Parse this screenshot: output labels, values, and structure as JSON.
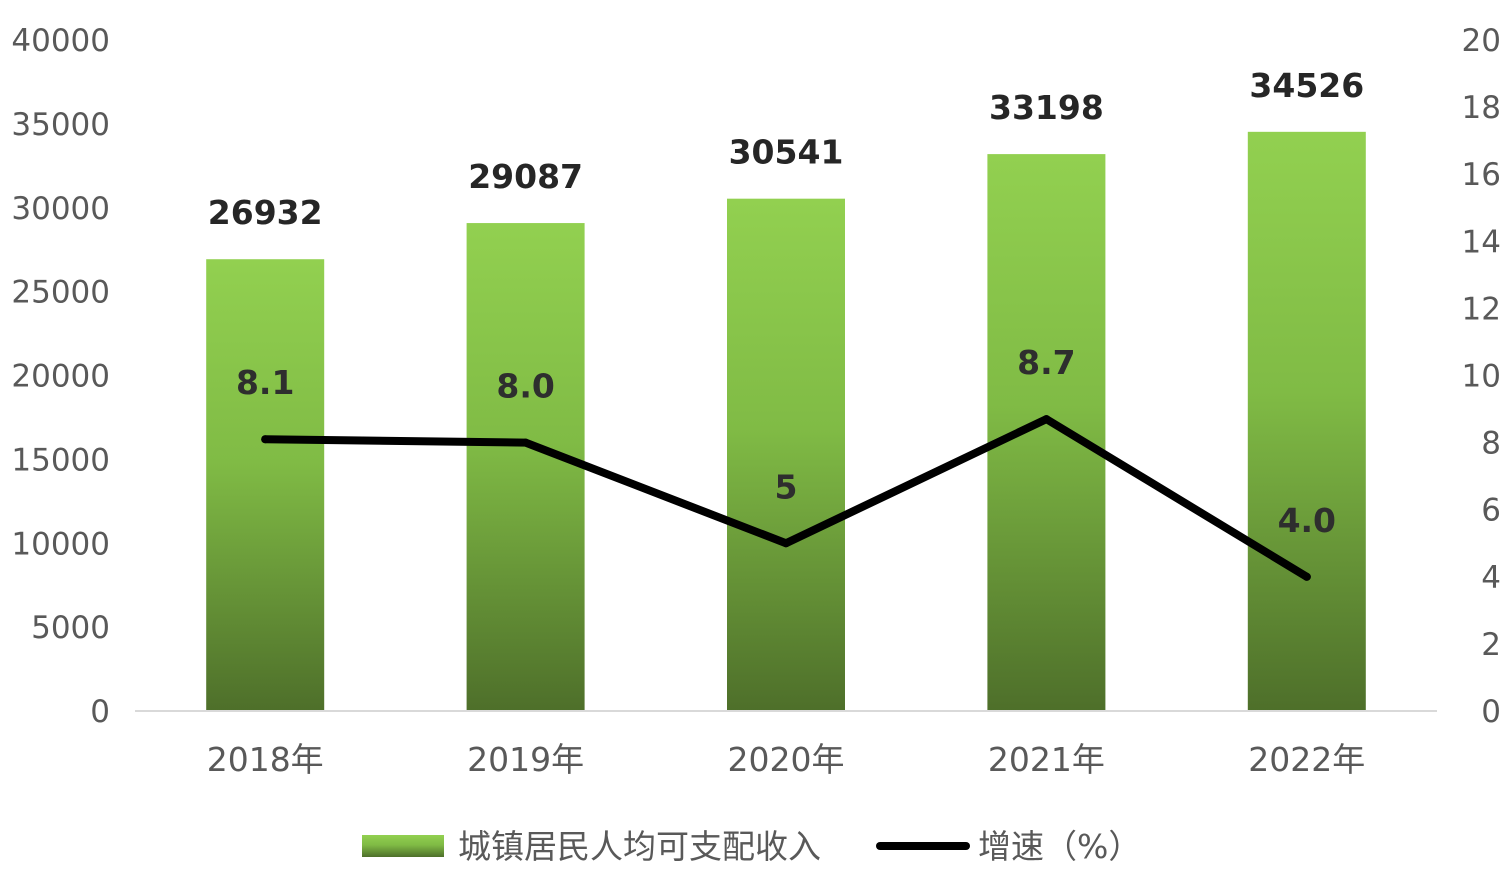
{
  "chart_data": {
    "type": "bar",
    "categories": [
      "2018年",
      "2019年",
      "2020年",
      "2021年",
      "2022年"
    ],
    "series": [
      {
        "name": "城镇居民人均可支配收入",
        "type": "bar",
        "axis": "left",
        "values": [
          26932,
          29087,
          30541,
          33198,
          34526
        ],
        "labels": [
          "26932",
          "29087",
          "30541",
          "33198",
          "34526"
        ]
      },
      {
        "name": "增速（%）",
        "type": "line",
        "axis": "right",
        "values": [
          8.1,
          8.0,
          5,
          8.7,
          4.0
        ],
        "labels": [
          "8.1",
          "8.0",
          "5",
          "8.7",
          "4.0"
        ]
      }
    ],
    "y_left": {
      "ylim": [
        0,
        40000
      ],
      "ticks": [
        "0",
        "5000",
        "10000",
        "15000",
        "20000",
        "25000",
        "30000",
        "35000",
        "40000"
      ]
    },
    "y_right": {
      "ylim": [
        0,
        20
      ],
      "ticks": [
        "0",
        "2",
        "4",
        "6",
        "8",
        "10",
        "12",
        "14",
        "16",
        "18",
        "20"
      ]
    },
    "grid": false,
    "legend_position": "bottom",
    "colors": {
      "bar_top": "#92d050",
      "bar_bottom": "#4e6f2a",
      "line": "#000000",
      "axis": "#d9d9d9"
    }
  }
}
